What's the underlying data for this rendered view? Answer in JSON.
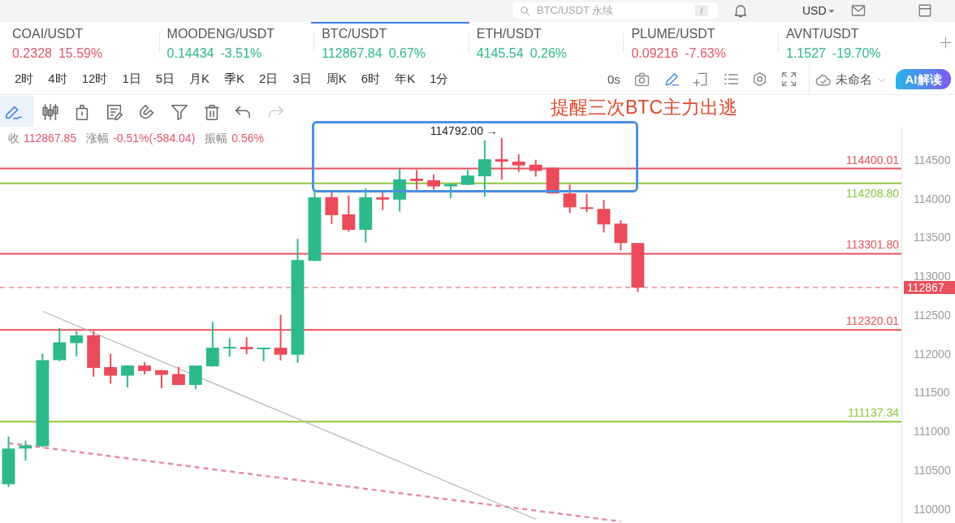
{
  "chart_data": [
    {
      "type": "other",
      "annotations": [
        "BTC/USDT 永续",
        "/",
        "USD"
      ]
    },
    {
      "type": "other",
      "categories": [
        "COAI/USDT",
        "MOODENG/USDT",
        "BTC/USDT",
        "ETH/USDT",
        "PLUME/USDT",
        "AVNT/USDT"
      ],
      "series": [
        {
          "values": [
            0.2328,
            0.14434,
            112867.84,
            4145.54,
            0.09216,
            1.1527
          ],
          "colors": [
            "#e0566a",
            "#2eb88a",
            "#2eb88a",
            "#2eb88a",
            "#e0566a",
            "#2eb88a"
          ]
        }
      ],
      "data_labels": true,
      "annotations": [
        "15.59%",
        "-3.51%",
        "0.67%",
        "0.26%",
        "-7.63%",
        "-19.70%"
      ]
    },
    {
      "type": "other",
      "annotations": [
        "2时",
        "4时",
        "12时",
        "1日",
        "5日",
        "月K",
        "季K",
        "2日",
        "3日",
        "周K",
        "6时",
        "年K",
        "1分"
      ]
    },
    {
      "type": "other",
      "annotations": [
        "0s",
        "未命名",
        "AI解读"
      ]
    },
    {
      "type": "candlestick",
      "title": "提醒三次BTC主力出逃",
      "subtitle": "收 112867.85 涨幅 -0.51%(-584.04) 振幅 0.56%",
      "categories": [
        null,
        null,
        null,
        null,
        null,
        null,
        null,
        null,
        null,
        null,
        null,
        null,
        null,
        null,
        null,
        null,
        null,
        null,
        null,
        null,
        null,
        null,
        null,
        null,
        null,
        null,
        null,
        null,
        null,
        null,
        null,
        null,
        null,
        null,
        null,
        null,
        null,
        null,
        null,
        null,
        null,
        null,
        null,
        null,
        null,
        null,
        null,
        null,
        null,
        null,
        null,
        null,
        null
      ],
      "ohlc": [
        [
          110330,
          110940,
          110300,
          110790
        ],
        [
          110790,
          110890,
          110640,
          110830
        ],
        [
          110820,
          112010,
          110810,
          111930
        ],
        [
          111930,
          112340,
          111920,
          112160
        ],
        [
          112150,
          112300,
          111980,
          112250
        ],
        [
          112250,
          112300,
          111720,
          111830
        ],
        [
          111840,
          112010,
          111630,
          111730
        ],
        [
          111730,
          111860,
          111580,
          111860
        ],
        [
          111860,
          111900,
          111750,
          111790
        ],
        [
          111800,
          111800,
          111570,
          111740
        ],
        [
          111750,
          111840,
          111610,
          111610
        ],
        [
          111610,
          111860,
          111560,
          111860
        ],
        [
          111850,
          112420,
          111850,
          112090
        ],
        [
          112080,
          112210,
          111980,
          112100
        ],
        [
          112100,
          112220,
          112010,
          112070
        ],
        [
          112070,
          112090,
          111920,
          112090
        ],
        [
          112090,
          112510,
          111930,
          112000
        ],
        [
          112000,
          113490,
          111900,
          113220
        ],
        [
          113210,
          114110,
          113210,
          114030
        ],
        [
          114030,
          114100,
          113690,
          113800
        ],
        [
          113810,
          114050,
          113590,
          113610
        ],
        [
          113610,
          114140,
          113450,
          114030
        ],
        [
          114030,
          114110,
          113870,
          114000
        ],
        [
          114000,
          114390,
          113850,
          114260
        ],
        [
          114270,
          114380,
          114130,
          114240
        ],
        [
          114250,
          114320,
          114130,
          114170
        ],
        [
          114170,
          114210,
          114020,
          114200
        ],
        [
          114190,
          114380,
          114190,
          114310
        ],
        [
          114300,
          114760,
          114040,
          114520
        ],
        [
          114520,
          114792,
          114260,
          114490
        ],
        [
          114490,
          114580,
          114360,
          114440
        ],
        [
          114450,
          114510,
          114300,
          114370
        ],
        [
          114410,
          114410,
          114080,
          114080
        ],
        [
          114080,
          114190,
          113830,
          113900
        ],
        [
          113900,
          114070,
          113840,
          113880
        ],
        [
          113880,
          113990,
          113580,
          113680
        ],
        [
          113690,
          113730,
          113350,
          113440
        ],
        [
          113440,
          113440,
          112810,
          112867.85
        ],
        null,
        null,
        null,
        null,
        null,
        null,
        null,
        null,
        null,
        null,
        null,
        null,
        null,
        null,
        null
      ],
      "colors": [
        "#2db98b",
        "#2db98b",
        "#2db98b",
        "#2db98b",
        "#2db98b",
        "#eb4b5b",
        "#eb4b5b",
        "#2db98b",
        "#eb4b5b",
        "#eb4b5b",
        "#eb4b5b",
        "#2db98b",
        "#2db98b",
        "#2db98b",
        "#eb4b5b",
        "#2db98b",
        "#eb4b5b",
        "#2db98b",
        "#2db98b",
        "#eb4b5b",
        "#eb4b5b",
        "#2db98b",
        "#eb4b5b",
        "#2db98b",
        "#eb4b5b",
        "#eb4b5b",
        "#2db98b",
        "#2db98b",
        "#2db98b",
        "#eb4b5b",
        "#eb4b5b",
        "#eb4b5b",
        "#eb4b5b",
        "#eb4b5b",
        "#eb4b5b",
        "#eb4b5b",
        "#eb4b5b",
        "#eb4b5b",
        null,
        null,
        null,
        null,
        null,
        null,
        null,
        null,
        null,
        null,
        null,
        null,
        null,
        null,
        null
      ],
      "series": [
        {
          "type": "line",
          "color": "#b4b4b4",
          "values": [
            null,
            null,
            112560,
            null,
            null,
            null,
            null,
            null,
            null,
            null,
            null,
            null,
            null,
            null,
            null,
            null,
            null,
            null,
            null,
            null,
            null,
            null,
            null,
            null,
            null,
            null,
            null,
            null,
            null,
            null,
            null,
            109880,
            null,
            null,
            null,
            null,
            null,
            null,
            null,
            null,
            null,
            null,
            null,
            null,
            null,
            null,
            null,
            null,
            null,
            null,
            null,
            null,
            null
          ]
        },
        {
          "type": "line",
          "color": "#e58ba8",
          "line_style": "dashed",
          "values": [
            110860,
            null,
            null,
            null,
            null,
            null,
            null,
            null,
            null,
            null,
            null,
            null,
            null,
            null,
            null,
            null,
            null,
            null,
            null,
            null,
            null,
            null,
            null,
            null,
            null,
            null,
            null,
            null,
            null,
            null,
            null,
            null,
            null,
            null,
            null,
            null,
            109850,
            null,
            null,
            null,
            null,
            null,
            null,
            null,
            null,
            null,
            null,
            null,
            null,
            null,
            null,
            null,
            null
          ]
        }
      ],
      "ylim": [
        109830,
        114940
      ],
      "yticks": [
        110000,
        110500,
        111000,
        111500,
        112000,
        112500,
        113000,
        113500,
        114000,
        114500
      ],
      "ref_lines": [
        {
          "axis": "y",
          "value": 114400.01,
          "label": "114400.01",
          "color": "#e8505b"
        },
        {
          "axis": "y",
          "value": 114208.8,
          "label": "114208.80",
          "color": "#8dc63f"
        },
        {
          "axis": "y",
          "value": 113301.8,
          "label": "113301.80",
          "color": "#e8505b"
        },
        {
          "axis": "y",
          "value": 112320.01,
          "label": "112320.01",
          "color": "#e8505b"
        },
        {
          "axis": "y",
          "value": 111137.34,
          "label": "111137.34",
          "color": "#8dc63f"
        },
        {
          "axis": "y",
          "value": 112867,
          "label": "112867",
          "color": "#e8505b",
          "line_style": "dashed"
        }
      ],
      "annotations": [
        "114792.00 →"
      ],
      "grid": false,
      "legend": false,
      "marker": "none",
      "tick_labels": "y"
    }
  ]
}
